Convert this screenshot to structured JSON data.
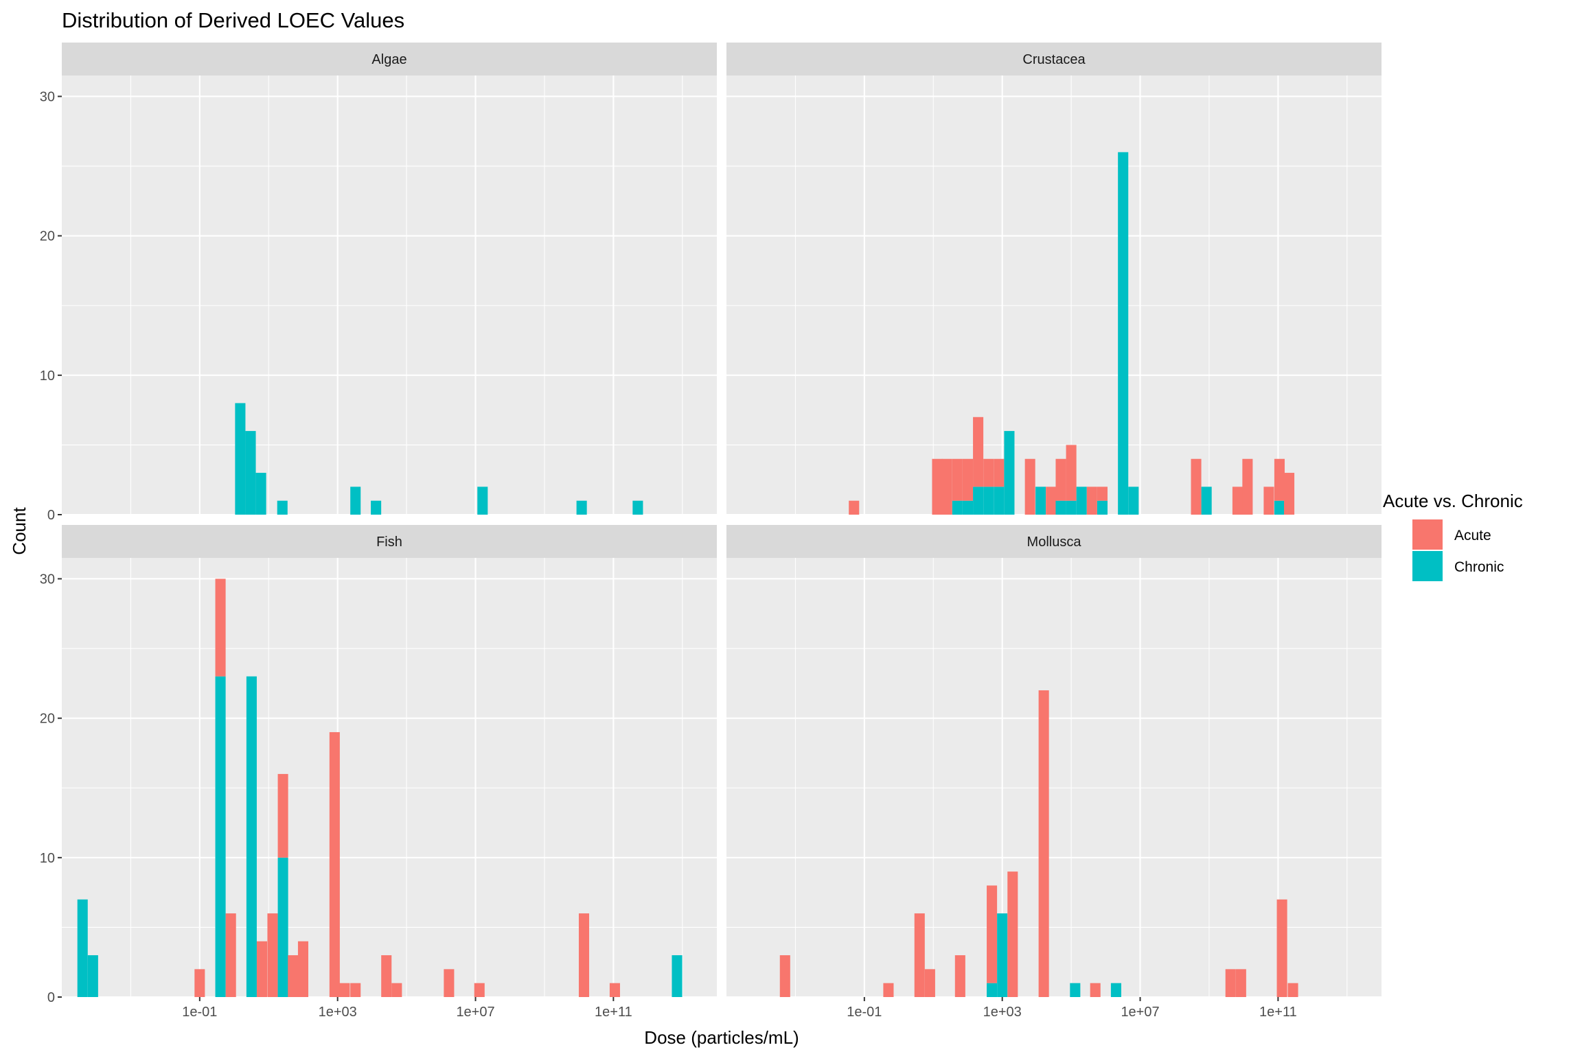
{
  "chart_data": {
    "type": "bar",
    "title": "Distribution of Derived LOEC Values",
    "xlabel": "Dose (particles/mL)",
    "ylabel": "Count",
    "x_scale": "log10",
    "x_range": [
      1e-05,
      100000000000000.0
    ],
    "x_ticks": [
      "1e-01",
      "1e+03",
      "1e+07",
      "1e+11"
    ],
    "y_ticks": [
      "0",
      "10",
      "20",
      "30"
    ],
    "ylim": [
      0,
      31.5
    ],
    "grid": true,
    "stacked": true,
    "legend": {
      "title": "Acute vs. Chronic",
      "placement": "right",
      "entries": [
        {
          "name": "Acute",
          "color": "#F8766D"
        },
        {
          "name": "Chronic",
          "color": "#00BFC4"
        }
      ]
    },
    "facets": [
      {
        "name": "Algae",
        "bins": [
          {
            "x": 1.5,
            "chronic": 8,
            "acute": 0
          },
          {
            "x": 3,
            "chronic": 6,
            "acute": 0
          },
          {
            "x": 6,
            "chronic": 3,
            "acute": 0
          },
          {
            "x": 25,
            "chronic": 1,
            "acute": 0
          },
          {
            "x": 3300,
            "chronic": 2,
            "acute": 0
          },
          {
            "x": 13000,
            "chronic": 1,
            "acute": 0
          },
          {
            "x": 16000000,
            "chronic": 2,
            "acute": 0
          },
          {
            "x": 12000000000,
            "chronic": 1,
            "acute": 0
          },
          {
            "x": 510000000000,
            "chronic": 1,
            "acute": 0
          }
        ]
      },
      {
        "name": "Crustacea",
        "bins": [
          {
            "x": 0.05,
            "chronic": 0,
            "acute": 1
          },
          {
            "x": 13,
            "chronic": 0,
            "acute": 4
          },
          {
            "x": 25,
            "chronic": 0,
            "acute": 4
          },
          {
            "x": 50,
            "chronic": 1,
            "acute": 3
          },
          {
            "x": 100,
            "chronic": 1,
            "acute": 3
          },
          {
            "x": 200,
            "chronic": 2,
            "acute": 5
          },
          {
            "x": 400,
            "chronic": 2,
            "acute": 2
          },
          {
            "x": 800,
            "chronic": 2,
            "acute": 2
          },
          {
            "x": 1600,
            "chronic": 6,
            "acute": 0
          },
          {
            "x": 6400,
            "chronic": 0,
            "acute": 4
          },
          {
            "x": 13000,
            "chronic": 2,
            "acute": 0
          },
          {
            "x": 26000,
            "chronic": 0,
            "acute": 2
          },
          {
            "x": 50000,
            "chronic": 1,
            "acute": 3
          },
          {
            "x": 100000,
            "chronic": 1,
            "acute": 4
          },
          {
            "x": 200000,
            "chronic": 2,
            "acute": 0
          },
          {
            "x": 400000,
            "chronic": 0,
            "acute": 2
          },
          {
            "x": 800000,
            "chronic": 1,
            "acute": 1
          },
          {
            "x": 3200000,
            "chronic": 26,
            "acute": 0
          },
          {
            "x": 6400000,
            "chronic": 2,
            "acute": 0
          },
          {
            "x": 420000000,
            "chronic": 0,
            "acute": 4
          },
          {
            "x": 840000000,
            "chronic": 2,
            "acute": 0
          },
          {
            "x": 6700000000,
            "chronic": 0,
            "acute": 2
          },
          {
            "x": 13000000000,
            "chronic": 0,
            "acute": 4
          },
          {
            "x": 54000000000,
            "chronic": 0,
            "acute": 2
          },
          {
            "x": 110000000000,
            "chronic": 1,
            "acute": 3
          },
          {
            "x": 210000000000,
            "chronic": 0,
            "acute": 3
          }
        ]
      },
      {
        "name": "Fish",
        "bins": [
          {
            "x": 4e-05,
            "chronic": 7,
            "acute": 0
          },
          {
            "x": 8e-05,
            "chronic": 3,
            "acute": 0
          },
          {
            "x": 0.1,
            "chronic": 0,
            "acute": 2
          },
          {
            "x": 0.4,
            "chronic": 23,
            "acute": 7
          },
          {
            "x": 0.8,
            "chronic": 0,
            "acute": 6
          },
          {
            "x": 3.2,
            "chronic": 23,
            "acute": 0
          },
          {
            "x": 6.4,
            "chronic": 0,
            "acute": 4
          },
          {
            "x": 13,
            "chronic": 0,
            "acute": 6
          },
          {
            "x": 26,
            "chronic": 10,
            "acute": 6
          },
          {
            "x": 51,
            "chronic": 0,
            "acute": 3
          },
          {
            "x": 100,
            "chronic": 0,
            "acute": 4
          },
          {
            "x": 820,
            "chronic": 0,
            "acute": 19
          },
          {
            "x": 1600,
            "chronic": 0,
            "acute": 1
          },
          {
            "x": 3300,
            "chronic": 0,
            "acute": 1
          },
          {
            "x": 26000,
            "chronic": 0,
            "acute": 3
          },
          {
            "x": 52000,
            "chronic": 0,
            "acute": 1
          },
          {
            "x": 1700000,
            "chronic": 0,
            "acute": 2
          },
          {
            "x": 13000000,
            "chronic": 0,
            "acute": 1
          },
          {
            "x": 14000000000,
            "chronic": 0,
            "acute": 6
          },
          {
            "x": 110000000000,
            "chronic": 0,
            "acute": 1
          },
          {
            "x": 7000000000000,
            "chronic": 3,
            "acute": 0
          }
        ]
      },
      {
        "name": "Mollusca",
        "bins": [
          {
            "x": 0.0005,
            "chronic": 0,
            "acute": 3
          },
          {
            "x": 0.5,
            "chronic": 0,
            "acute": 1
          },
          {
            "x": 4,
            "chronic": 0,
            "acute": 6
          },
          {
            "x": 8,
            "chronic": 0,
            "acute": 2
          },
          {
            "x": 60,
            "chronic": 0,
            "acute": 3
          },
          {
            "x": 500,
            "chronic": 1,
            "acute": 7
          },
          {
            "x": 1000,
            "chronic": 6,
            "acute": 0
          },
          {
            "x": 2000,
            "chronic": 0,
            "acute": 9
          },
          {
            "x": 16000,
            "chronic": 0,
            "acute": 22
          },
          {
            "x": 130000,
            "chronic": 1,
            "acute": 0
          },
          {
            "x": 500000,
            "chronic": 0,
            "acute": 1
          },
          {
            "x": 2000000,
            "chronic": 1,
            "acute": 0
          },
          {
            "x": 4200000000,
            "chronic": 0,
            "acute": 2
          },
          {
            "x": 8400000000,
            "chronic": 0,
            "acute": 2
          },
          {
            "x": 130000000000,
            "chronic": 0,
            "acute": 7
          },
          {
            "x": 270000000000,
            "chronic": 0,
            "acute": 1
          }
        ]
      }
    ]
  }
}
